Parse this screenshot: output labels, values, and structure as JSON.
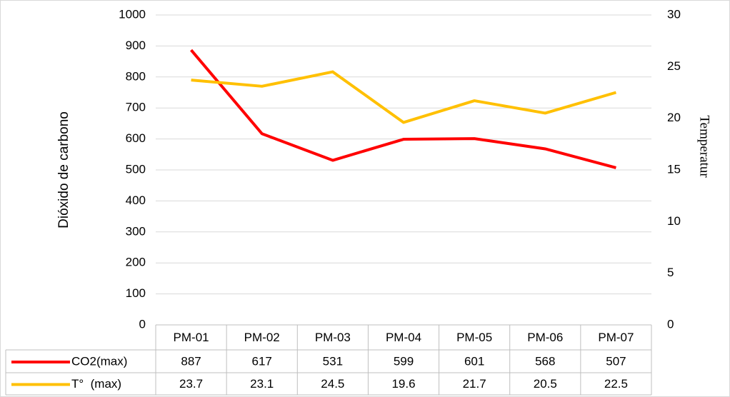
{
  "chart_data": {
    "type": "line",
    "ylabel": "Dióxido de carbono",
    "y2label": "Temperatur",
    "categories": [
      "PM-01",
      "PM-02",
      "PM-03",
      "PM-04",
      "PM-05",
      "PM-06",
      "PM-07"
    ],
    "series": [
      {
        "name": "CO2(max)",
        "color": "#ff0000",
        "values": [
          887,
          617,
          531,
          599,
          601,
          568,
          507
        ]
      },
      {
        "name": "T°  (max)",
        "color": "#ffc000",
        "axis": "y2",
        "values": [
          23.7,
          23.1,
          24.5,
          19.6,
          21.7,
          20.5,
          22.5
        ]
      }
    ],
    "ylim": [
      0,
      1000
    ],
    "yticks": [
      0,
      100,
      200,
      300,
      400,
      500,
      600,
      700,
      800,
      900,
      1000
    ],
    "y2lim": [
      0,
      30
    ],
    "y2ticks": [
      0,
      5,
      10,
      15,
      20,
      25,
      30
    ],
    "grid": true,
    "data_table": true
  }
}
